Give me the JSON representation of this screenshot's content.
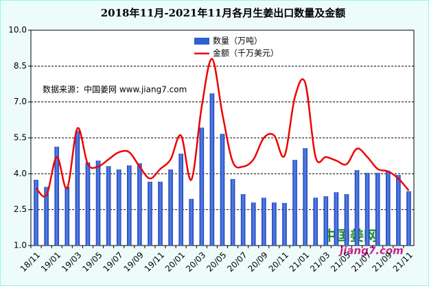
{
  "chart_data": {
    "type": "bar-line",
    "title": "2018年11月-2021年11月各月生姜出口数量及金额",
    "annotation": "数据来源：中国姜网 www.jiang7.com",
    "watermark": [
      "中国姜网",
      "jiang7.com"
    ],
    "categories": [
      "18/11",
      null,
      "19/01",
      null,
      "19/03",
      null,
      "19/05",
      null,
      "19/07",
      null,
      "19/09",
      null,
      "19/11",
      null,
      "20/01",
      null,
      "20/03",
      null,
      "20/05",
      null,
      "20/07",
      null,
      "20/09",
      null,
      "20/11",
      null,
      "21/01",
      null,
      "21/03",
      null,
      "21/05",
      null,
      "21/07",
      null,
      "21/09",
      null,
      "21/11"
    ],
    "series": [
      {
        "name": "数量（万吨）",
        "color": "#2f5fd0",
        "kind": "bar",
        "values": [
          3.75,
          3.45,
          5.13,
          3.46,
          5.8,
          4.47,
          4.55,
          4.32,
          4.18,
          4.35,
          4.44,
          3.67,
          3.67,
          4.18,
          4.84,
          2.95,
          5.93,
          7.36,
          5.67,
          3.78,
          3.15,
          2.8,
          3.0,
          2.8,
          2.78,
          4.58,
          5.07,
          3.0,
          3.06,
          3.23,
          3.15,
          4.15,
          4.04,
          4.04,
          4.12,
          3.95,
          3.27
        ]
      },
      {
        "name": "金额（千万美元）",
        "color": "#ee0000",
        "kind": "line",
        "values": [
          3.4,
          3.1,
          4.7,
          3.4,
          5.9,
          4.4,
          4.3,
          4.6,
          4.9,
          4.9,
          4.3,
          3.8,
          4.2,
          4.6,
          5.6,
          3.75,
          6.8,
          8.8,
          6.5,
          4.5,
          4.3,
          4.6,
          5.5,
          5.6,
          4.75,
          7.2,
          7.8,
          4.7,
          4.7,
          4.55,
          4.4,
          5.05,
          4.7,
          4.2,
          4.1,
          3.8,
          3.3
        ]
      }
    ],
    "ylim": [
      1,
      10
    ],
    "yticks": [
      {
        "value": 1,
        "label": "1.0"
      },
      {
        "value": 2.5,
        "label": "2.5"
      },
      {
        "value": 4,
        "label": "4.0"
      },
      {
        "value": 5.5,
        "label": "5.5"
      },
      {
        "value": 7,
        "label": "7.0"
      },
      {
        "value": 8.5,
        "label": "8.5"
      },
      {
        "value": 10,
        "label": "10.0"
      }
    ],
    "grid": true
  }
}
